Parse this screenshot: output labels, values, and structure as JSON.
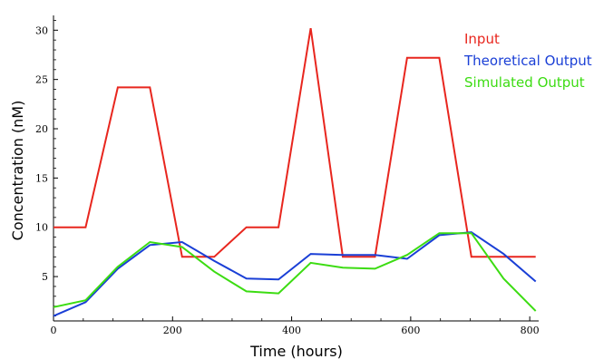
{
  "chart_data": {
    "type": "line",
    "title": "",
    "xlabel": "Time (hours)",
    "ylabel": "Concentration (nM)",
    "xlim": [
      0,
      815
    ],
    "ylim": [
      0.5,
      31.5
    ],
    "x_ticks": [
      0,
      200,
      400,
      600,
      800
    ],
    "y_ticks": [
      5,
      10,
      15,
      20,
      25,
      30
    ],
    "grid": false,
    "legend_placement": "top-right",
    "series": [
      {
        "name": "Input",
        "color": "#e8261e",
        "x": [
          0,
          54,
          108,
          162,
          216,
          270,
          324,
          378,
          432,
          486,
          540,
          594,
          648,
          702,
          756,
          810
        ],
        "y": [
          10,
          10,
          24.2,
          24.2,
          7,
          7,
          10,
          10,
          30.2,
          7,
          7,
          27.2,
          27.2,
          7,
          7,
          7
        ]
      },
      {
        "name": "Theoretical Output",
        "color": "#1a3fd6",
        "x": [
          0,
          54,
          108,
          162,
          216,
          270,
          324,
          378,
          432,
          486,
          540,
          594,
          648,
          702,
          756,
          810
        ],
        "y": [
          1,
          2.4,
          5.8,
          8.2,
          8.5,
          6.6,
          4.8,
          4.7,
          7.3,
          7.2,
          7.2,
          6.8,
          9.2,
          9.5,
          7.3,
          4.5
        ]
      },
      {
        "name": "Simulated Output",
        "color": "#3cdc12",
        "x": [
          0,
          54,
          108,
          162,
          216,
          270,
          324,
          378,
          432,
          486,
          540,
          594,
          648,
          702,
          756,
          810
        ],
        "y": [
          1.9,
          2.6,
          6.0,
          8.5,
          8.0,
          5.5,
          3.5,
          3.3,
          6.4,
          5.9,
          5.8,
          7.2,
          9.4,
          9.4,
          4.8,
          1.5
        ]
      }
    ]
  }
}
